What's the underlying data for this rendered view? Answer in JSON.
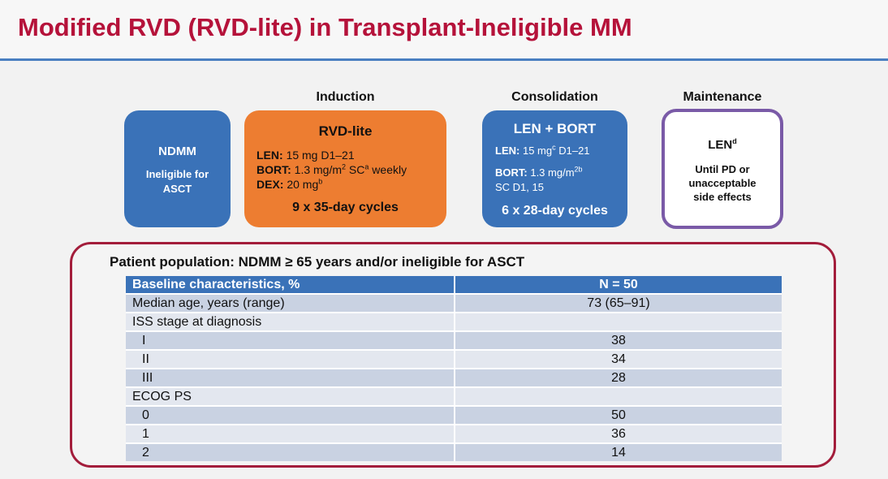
{
  "title": "Modified RVD (RVD-lite) in Transplant-Ineligible MM",
  "phases": {
    "induction": "Induction",
    "consolidation": "Consolidation",
    "maintenance": "Maintenance"
  },
  "ndmm": {
    "heading": "NDMM",
    "subtitle": "Ineligible for ASCT"
  },
  "induction_box": {
    "heading": "RVD-lite",
    "len_label": "LEN:",
    "len_text": "15 mg D1–21",
    "bort_label": "BORT:",
    "bort_dose": "1.3 mg/m",
    "bort_sup1": "2",
    "bort_sc": " SC",
    "bort_sup2": "a",
    "bort_rest": " weekly",
    "dex_label": "DEX:",
    "dex_text": "20 mg",
    "dex_sup": "b",
    "cycles": "9 x 35-day cycles"
  },
  "consolidation_box": {
    "heading": "LEN + BORT",
    "len_label": "LEN:",
    "len_dose": "15 mg",
    "len_sup": "c",
    "len_rest": " D1–21",
    "bort_label": "BORT:",
    "bort_dose": "1.3 mg/m",
    "bort_sup": "2b",
    "bort_line2": "SC D1, 15",
    "cycles": "6 x 28-day cycles"
  },
  "maintenance_box": {
    "heading": "LEN",
    "heading_sup": "d",
    "line1": "Until PD or",
    "line2": "unacceptable",
    "line3": "side effects"
  },
  "population": {
    "title": "Patient population: NDMM ≥ 65 years and/or ineligible for ASCT",
    "table": {
      "headers": [
        "Baseline characteristics, %",
        "N = 50"
      ],
      "rows": [
        {
          "label": "Median age, years (range)",
          "value": "73 (65–91)",
          "indent": false
        },
        {
          "label": "ISS stage at diagnosis",
          "value": "",
          "indent": false
        },
        {
          "label": "I",
          "value": "38",
          "indent": true
        },
        {
          "label": "II",
          "value": "34",
          "indent": true
        },
        {
          "label": "III",
          "value": "28",
          "indent": true
        },
        {
          "label": "ECOG PS",
          "value": "",
          "indent": false
        },
        {
          "label": "0",
          "value": "50",
          "indent": true
        },
        {
          "label": "1",
          "value": "36",
          "indent": true
        },
        {
          "label": "2",
          "value": "14",
          "indent": true
        }
      ]
    }
  },
  "colors": {
    "title": "#b5123a",
    "blue": "#3a72b8",
    "orange": "#ed7d31",
    "purple": "#7a5aa7",
    "border_red": "#a31d3b"
  }
}
